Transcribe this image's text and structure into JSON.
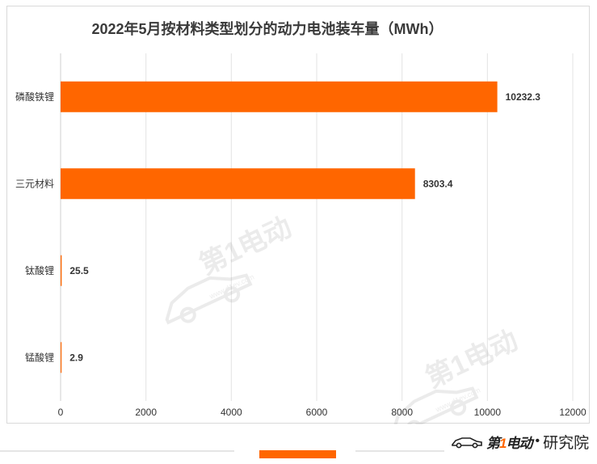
{
  "chart_data": {
    "type": "bar",
    "orientation": "horizontal",
    "title": "2022年5月按材料类型划分的动力电池装车量（MWh）",
    "categories": [
      "磷酸铁锂",
      "三元材料",
      "钛酸锂",
      "锰酸锂"
    ],
    "values": [
      10232.3,
      8303.4,
      25.5,
      2.9
    ],
    "value_labels": [
      "10232.3",
      "8303.4",
      "25.5",
      "2.9"
    ],
    "xlim": [
      0,
      12000
    ],
    "x_ticks": [
      0,
      2000,
      4000,
      6000,
      8000,
      10000,
      12000
    ],
    "grid": true,
    "bar_color": "#ff6600",
    "legend": "none"
  },
  "watermark": {
    "brand": "第1电动",
    "site": "www.d1ev.com"
  },
  "footer": {
    "logo_text_a": "第",
    "logo_text_b": "1",
    "logo_text_c": "电动",
    "separator": "•",
    "suffix": "研究院",
    "accent_color": "#ff6600"
  }
}
